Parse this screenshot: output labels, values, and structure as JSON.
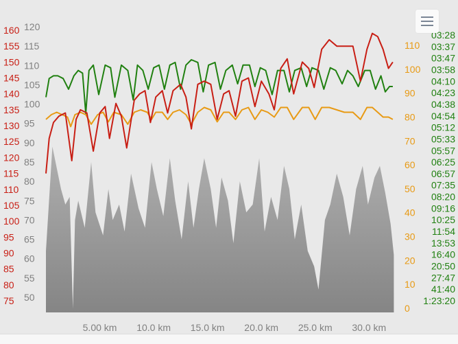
{
  "colors": {
    "red": "#c81e14",
    "orange": "#e89a14",
    "green": "#208010",
    "gray": "#8e8e8e",
    "grayAxis": "#808080"
  },
  "menu": {
    "icon": "hamburger-icon"
  },
  "chart_data": {
    "type": "line",
    "title": "",
    "x_unit": "km",
    "x_ticks": [
      "5.00 km",
      "10.0 km",
      "15.0 km",
      "20.0 km",
      "25.0 km",
      "30.0 km"
    ],
    "x_tick_values": [
      5,
      10,
      15,
      20,
      25,
      30
    ],
    "xlim": [
      0,
      32.4
    ],
    "axes": {
      "red_left": {
        "ticks": [
          "160",
          "155",
          "150",
          "145",
          "140",
          "135",
          "130",
          "125",
          "120",
          "115",
          "110",
          "105",
          "100",
          "95",
          "90",
          "85",
          "80",
          "75"
        ],
        "range": [
          75,
          160
        ]
      },
      "gray_left": {
        "ticks": [
          "120",
          "115",
          "110",
          "105",
          "100",
          "95",
          "90",
          "85",
          "80",
          "75",
          "70",
          "65",
          "60",
          "55",
          "50"
        ],
        "range": [
          50,
          120
        ]
      },
      "orange_right": {
        "ticks": [
          "110",
          "100",
          "90",
          "80",
          "70",
          "60",
          "50",
          "40",
          "30",
          "20",
          "10",
          "0"
        ],
        "range": [
          0,
          110
        ]
      },
      "green_right": {
        "ticks": [
          "03:28",
          "03:37",
          "03:47",
          "03:58",
          "04:10",
          "04:23",
          "04:38",
          "04:54",
          "05:12",
          "05:33",
          "05:57",
          "06:25",
          "06:57",
          "07:35",
          "08:20",
          "09:16",
          "10:25",
          "11:54",
          "13:53",
          "16:40",
          "20:50",
          "27:47",
          "41:40",
          "1:23:20"
        ]
      }
    },
    "series": [
      {
        "color": "#c81e14",
        "axis": "red_left",
        "x": [
          0,
          0.3,
          0.7,
          1.2,
          1.8,
          2.4,
          2.8,
          3.2,
          3.8,
          4.4,
          5.0,
          5.5,
          5.9,
          6.5,
          7.0,
          7.5,
          8.2,
          8.7,
          9.2,
          9.7,
          10.2,
          10.8,
          11.3,
          11.8,
          12.5,
          13.0,
          13.5,
          14.1,
          14.7,
          15.3,
          15.9,
          16.5,
          17.0,
          17.6,
          18.2,
          18.8,
          19.4,
          20.0,
          20.7,
          21.2,
          21.8,
          22.4,
          23.0,
          23.8,
          24.4,
          24.9,
          25.6,
          26.3,
          27.0,
          27.7,
          28.5,
          29.2,
          29.8,
          30.3,
          30.8,
          31.3,
          31.8,
          32.2
        ],
        "y": [
          115,
          126,
          131,
          133,
          134,
          119,
          132,
          135,
          134,
          122,
          134,
          136,
          126,
          137,
          133,
          123,
          138,
          140,
          141,
          131,
          139,
          141,
          134,
          141,
          143,
          139,
          129,
          143,
          144,
          143,
          132,
          140,
          141,
          133,
          144,
          145,
          136,
          144,
          140,
          135,
          148,
          151,
          140,
          150,
          148,
          142,
          154,
          157,
          155,
          155,
          155,
          144,
          154,
          159,
          158,
          154,
          148,
          150
        ]
      },
      {
        "color": "#e89a14",
        "axis": "orange_right",
        "x": [
          0,
          0.5,
          1.0,
          1.5,
          2.0,
          2.3,
          2.7,
          3.2,
          3.7,
          4.2,
          4.8,
          5.3,
          5.8,
          6.3,
          7.0,
          7.6,
          8.2,
          8.8,
          9.4,
          9.8,
          10.2,
          10.8,
          11.3,
          11.8,
          12.4,
          13.0,
          13.5,
          14.1,
          14.7,
          15.3,
          15.9,
          16.5,
          17.0,
          17.6,
          18.2,
          18.8,
          19.4,
          20.0,
          20.6,
          21.2,
          21.8,
          22.4,
          23.0,
          23.8,
          24.4,
          25.0,
          25.6,
          26.3,
          27.0,
          27.7,
          28.5,
          29.2,
          29.8,
          30.3,
          30.8,
          31.3,
          31.8,
          32.2
        ],
        "y": [
          79,
          81,
          82,
          81,
          80,
          76,
          81,
          82,
          81,
          77,
          81,
          82,
          78,
          82,
          81,
          77,
          82,
          83,
          82,
          79,
          82,
          82,
          79,
          82,
          83,
          81,
          77,
          82,
          84,
          83,
          78,
          82,
          82,
          79,
          83,
          84,
          79,
          83,
          82,
          80,
          84,
          84,
          79,
          84,
          84,
          79,
          84,
          84,
          83,
          82,
          82,
          79,
          84,
          84,
          82,
          80,
          80,
          79
        ]
      },
      {
        "color": "#208010",
        "axis": "green_right",
        "x": [
          0,
          0.3,
          0.7,
          1.1,
          1.6,
          2.1,
          2.6,
          3.0,
          3.4,
          3.7,
          4.0,
          4.4,
          4.9,
          5.5,
          6.0,
          6.4,
          7.0,
          7.6,
          8.1,
          8.5,
          9.0,
          9.5,
          10.0,
          10.5,
          11.0,
          11.5,
          12.0,
          12.5,
          13.0,
          13.5,
          14.1,
          14.6,
          15.1,
          15.7,
          16.2,
          16.7,
          17.3,
          17.8,
          18.3,
          18.9,
          19.4,
          19.9,
          20.4,
          21.0,
          21.5,
          22.1,
          22.6,
          23.1,
          23.7,
          24.2,
          24.7,
          25.3,
          25.8,
          26.4,
          26.9,
          27.5,
          28.0,
          28.5,
          29.0,
          29.6,
          30.1,
          30.6,
          31.1,
          31.5,
          31.9,
          32.2
        ],
        "y": [
          76,
          83,
          84,
          84,
          83,
          79,
          84,
          86,
          85,
          70,
          86,
          88,
          77,
          88,
          87,
          76,
          88,
          86,
          75,
          88,
          86,
          79,
          87,
          88,
          79,
          88,
          89,
          79,
          88,
          90,
          89,
          78,
          88,
          89,
          79,
          86,
          88,
          81,
          88,
          88,
          80,
          87,
          86,
          77,
          86,
          86,
          78,
          86,
          87,
          80,
          87,
          86,
          79,
          87,
          86,
          81,
          86,
          84,
          80,
          86,
          86,
          79,
          84,
          78,
          80,
          80
        ]
      },
      {
        "color": "#8e8e8e",
        "axis": "gray_left",
        "type": "area",
        "x": [
          0,
          0.6,
          1.4,
          1.8,
          2.2,
          2.5,
          2.7,
          3.0,
          3.6,
          4.2,
          4.6,
          5.3,
          5.8,
          6.2,
          6.8,
          7.3,
          7.9,
          8.6,
          9.2,
          9.8,
          10.3,
          10.9,
          11.5,
          12.0,
          12.6,
          13.2,
          13.7,
          14.2,
          14.7,
          15.3,
          15.8,
          16.3,
          16.9,
          17.4,
          18.0,
          18.6,
          19.2,
          19.8,
          20.3,
          20.9,
          21.5,
          22.1,
          22.6,
          23.1,
          23.7,
          24.3,
          24.9,
          25.3,
          25.9,
          26.4,
          27.0,
          27.6,
          28.2,
          28.8,
          29.4,
          29.9,
          30.5,
          31.0,
          31.5,
          32.0,
          32.3
        ],
        "y": [
          62,
          89,
          78,
          74,
          76,
          47,
          70,
          75,
          68,
          85,
          72,
          66,
          78,
          70,
          74,
          67,
          82,
          73,
          68,
          85,
          78,
          71,
          86,
          75,
          65,
          80,
          68,
          78,
          86,
          78,
          68,
          81,
          75,
          64,
          80,
          72,
          74,
          86,
          67,
          76,
          70,
          84,
          78,
          65,
          74,
          62,
          58,
          52,
          70,
          74,
          82,
          76,
          66,
          78,
          84,
          74,
          81,
          84,
          77,
          69,
          61
        ]
      }
    ]
  }
}
